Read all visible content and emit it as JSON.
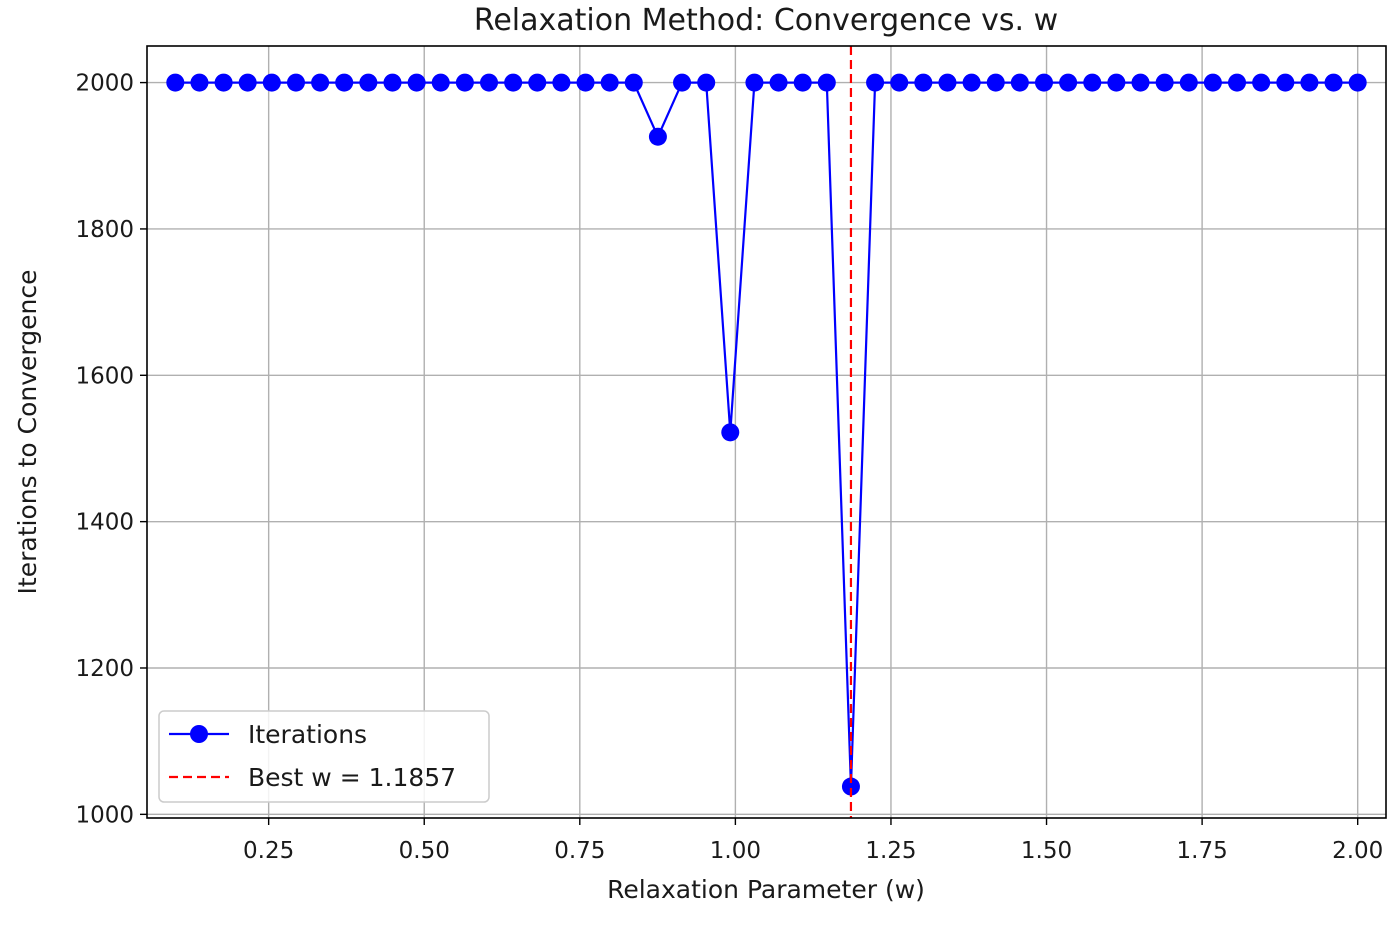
{
  "chart_data": {
    "type": "line",
    "title": "Relaxation Method: Convergence vs. w",
    "xlabel": "Relaxation Parameter (w)",
    "ylabel": "Iterations to Convergence",
    "xlim": [
      0.0545,
      2.0455
    ],
    "ylim": [
      995,
      2050
    ],
    "xticks": [
      0.25,
      0.5,
      0.75,
      1.0,
      1.25,
      1.5,
      1.75,
      2.0
    ],
    "xtick_labels": [
      "0.25",
      "0.50",
      "0.75",
      "1.00",
      "1.25",
      "1.50",
      "1.75",
      "2.00"
    ],
    "yticks": [
      1000,
      1200,
      1400,
      1600,
      1800,
      2000
    ],
    "ytick_labels": [
      "1000",
      "1200",
      "1400",
      "1600",
      "1800",
      "2000"
    ],
    "grid": true,
    "legend_position": "lower-left",
    "series": [
      {
        "name": "Iterations",
        "color": "#0000ff",
        "marker": "circle",
        "x": [
          0.1,
          0.1388,
          0.1776,
          0.2163,
          0.2551,
          0.2939,
          0.3327,
          0.3714,
          0.4102,
          0.449,
          0.4878,
          0.5265,
          0.5653,
          0.6041,
          0.6429,
          0.6816,
          0.7204,
          0.7592,
          0.798,
          0.8367,
          0.8755,
          0.9143,
          0.9531,
          0.9918,
          1.0306,
          1.0694,
          1.1082,
          1.1469,
          1.1857,
          1.2245,
          1.2633,
          1.302,
          1.3408,
          1.3796,
          1.4184,
          1.4571,
          1.4959,
          1.5347,
          1.5735,
          1.6122,
          1.651,
          1.6898,
          1.7286,
          1.7673,
          1.8061,
          1.8449,
          1.8837,
          1.9224,
          1.9612,
          2.0
        ],
        "y": [
          2000,
          2000,
          2000,
          2000,
          2000,
          2000,
          2000,
          2000,
          2000,
          2000,
          2000,
          2000,
          2000,
          2000,
          2000,
          2000,
          2000,
          2000,
          2000,
          2000,
          1926,
          2000,
          2000,
          1522,
          2000,
          2000,
          2000,
          2000,
          1038,
          2000,
          2000,
          2000,
          2000,
          2000,
          2000,
          2000,
          2000,
          2000,
          2000,
          2000,
          2000,
          2000,
          2000,
          2000,
          2000,
          2000,
          2000,
          2000,
          2000,
          2000
        ]
      }
    ],
    "reference_line": {
      "name": "Best w = 1.1857",
      "x": 1.1857,
      "color": "#ff0000",
      "style": "dashed"
    }
  }
}
